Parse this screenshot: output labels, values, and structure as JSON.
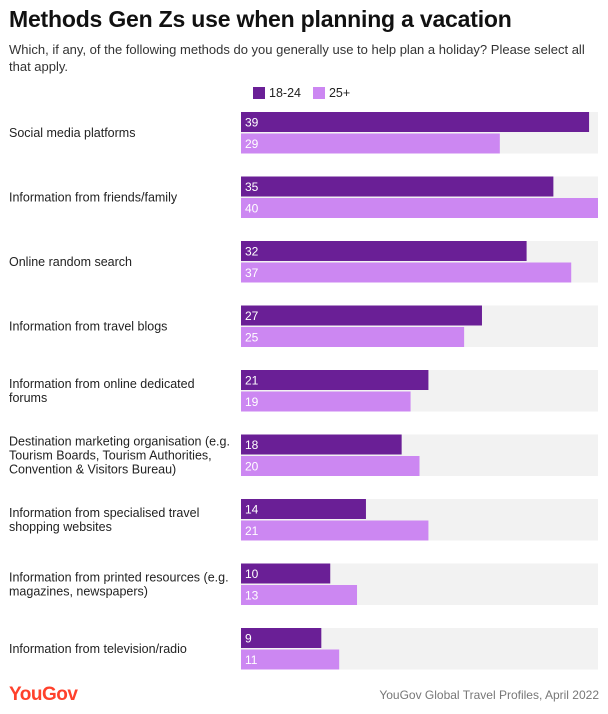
{
  "header": {
    "title": "Methods Gen Zs use when planning a vacation",
    "subtitle": "Which, if any, of the following methods do you generally use to help plan a holiday? Please select all that apply."
  },
  "colors": {
    "series_18_24": "#6a1f96",
    "series_25_plus": "#cc87f2",
    "track": "#f2f2f2",
    "logo": "#ff412c"
  },
  "footer": {
    "logo": "YouGov",
    "source": "YouGov Global Travel Profiles, April 2022"
  },
  "chart_data": {
    "type": "bar",
    "orientation": "horizontal",
    "categories": [
      [
        "Social media platforms"
      ],
      [
        "Information from friends/family"
      ],
      [
        "Online random search"
      ],
      [
        "Information from travel blogs"
      ],
      [
        "Information from online dedicated",
        "forums"
      ],
      [
        "Destination marketing organisation (e.g.",
        "Tourism Boards, Tourism Authorities,",
        "Convention & Visitors Bureau)"
      ],
      [
        "Information from specialised travel",
        "shopping websites"
      ],
      [
        "Information from printed resources (e.g.",
        "magazines, newspapers)"
      ],
      [
        "Information from television/radio"
      ]
    ],
    "series": [
      {
        "name": "18-24",
        "values": [
          39,
          35,
          32,
          27,
          21,
          18,
          14,
          10,
          9
        ]
      },
      {
        "name": "25+",
        "values": [
          29,
          40,
          37,
          25,
          19,
          20,
          21,
          13,
          11
        ]
      }
    ],
    "xlim": [
      0,
      40
    ],
    "legend_position": "top",
    "grid": false,
    "data_labels": true
  }
}
